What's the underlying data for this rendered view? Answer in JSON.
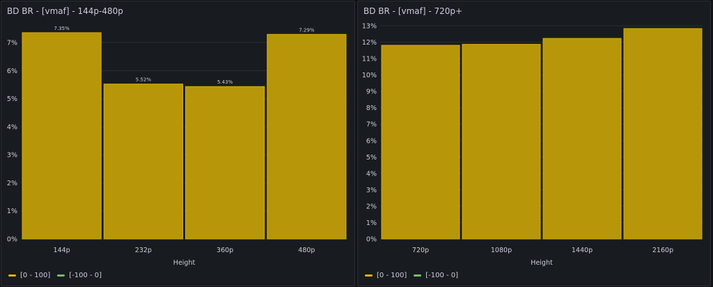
{
  "chart_data": [
    {
      "type": "bar",
      "title": "BD BR - [vmaf] - 144p-480p",
      "xlabel": "Height",
      "ylabel": "",
      "categories": [
        "144p",
        "232p",
        "360p",
        "480p"
      ],
      "values": [
        7.35,
        5.52,
        5.43,
        7.29
      ],
      "value_labels": [
        "7.35%",
        "5.52%",
        "5.43%",
        "7.29%"
      ],
      "ylim": [
        0,
        7.6
      ],
      "yticks": [
        0,
        1,
        2,
        3,
        4,
        5,
        6,
        7
      ],
      "ytick_labels": [
        "0%",
        "1%",
        "2%",
        "3%",
        "4%",
        "5%",
        "6%",
        "7%"
      ],
      "grid": true,
      "legend": [
        {
          "label": "[0 - 100]",
          "color": "#e0b400"
        },
        {
          "label": "[-100 - 0]",
          "color": "#73bf69"
        }
      ],
      "legend_placement": "bottom-left",
      "bar_color": "#b8960a"
    },
    {
      "type": "bar",
      "title": "BD BR - [vmaf] - 720p+",
      "xlabel": "Height",
      "ylabel": "",
      "categories": [
        "720p",
        "1080p",
        "1440p",
        "2160p"
      ],
      "values": [
        11.81,
        11.87,
        12.23,
        12.83
      ],
      "value_labels": [],
      "ylim": [
        0,
        13
      ],
      "yticks": [
        0,
        1,
        2,
        3,
        4,
        5,
        6,
        7,
        8,
        9,
        10,
        11,
        12,
        13
      ],
      "ytick_labels": [
        "0%",
        "1%",
        "2%",
        "3%",
        "4%",
        "5%",
        "6%",
        "7%",
        "8%",
        "9%",
        "10%",
        "11%",
        "12%",
        "13%"
      ],
      "grid": true,
      "legend": [
        {
          "label": "[0 - 100]",
          "color": "#e0b400"
        },
        {
          "label": "[-100 - 0]",
          "color": "#73bf69"
        }
      ],
      "legend_placement": "bottom-left",
      "bar_color": "#b8960a"
    }
  ]
}
